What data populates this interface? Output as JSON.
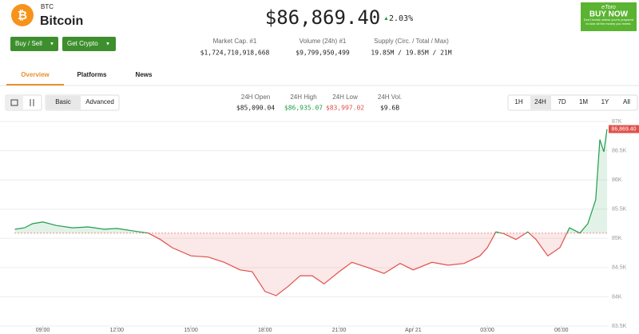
{
  "header": {
    "symbol": "BTC",
    "name": "Bitcoin",
    "price": "$86,869.40",
    "change": "2.03%"
  },
  "ad": {
    "brand": "eToro",
    "cta": "BUY NOW",
    "disclaimer": "Don't invest unless you're prepared to lose all the money you invest."
  },
  "buttons": [
    "Buy / Sell",
    "Get Crypto"
  ],
  "stats": [
    {
      "label": "Market Cap. #1",
      "value": "$1,724,710,918,668"
    },
    {
      "label": "Volume (24h) #1",
      "value": "$9,799,950,499"
    },
    {
      "label": "Supply (Circ. / Total / Max)",
      "value": "19.85M / 19.85M / 21M"
    }
  ],
  "tabs": [
    "Overview",
    "Platforms",
    "News"
  ],
  "chart_controls": {
    "modes": [
      "Basic",
      "Advanced"
    ],
    "ranges": [
      "1H",
      "24H",
      "7D",
      "1M",
      "1Y",
      "All"
    ]
  },
  "day_stats": [
    {
      "label": "24H Open",
      "value": "$85,090.04"
    },
    {
      "label": "24H High",
      "value": "$86,935.07"
    },
    {
      "label": "24H Low",
      "value": "$83,997.02"
    },
    {
      "label": "24H Vol.",
      "value": "$9.6B"
    }
  ],
  "chart_data": {
    "type": "line",
    "x": [
      7.87,
      8.26,
      8.58,
      9,
      9.55,
      10.2,
      10.84,
      11.49,
      12,
      12.62,
      13.27,
      13.76,
      14.24,
      15,
      15.7,
      16.35,
      16.99,
      17.48,
      18,
      18.45,
      18.94,
      19.42,
      19.91,
      20.39,
      21,
      21.52,
      22.17,
      22.82,
      23.47,
      24,
      24.76,
      25.41,
      26.06,
      26.7,
      27,
      27.35,
      27.67,
      28.16,
      28.64,
      28.97,
      29.45,
      29.94,
      30.33,
      30.75,
      31.07,
      31.39,
      31.56,
      31.72,
      31.85
    ],
    "values": [
      85155,
      85180,
      85250,
      85280,
      85220,
      85180,
      85195,
      85155,
      85170,
      85130,
      85090,
      84980,
      84840,
      84700,
      84680,
      84590,
      84460,
      84430,
      84090,
      84020,
      84180,
      84360,
      84360,
      84220,
      84430,
      84590,
      84500,
      84400,
      84570,
      84460,
      84590,
      84540,
      84570,
      84700,
      84840,
      85110,
      85080,
      84980,
      85110,
      84980,
      84700,
      84840,
      85180,
      85090,
      85250,
      85660,
      86690,
      86480,
      86869.4
    ],
    "baseline": 85090.04,
    "last_price_label": "86,869.40",
    "colors": {
      "above": "#1e9e4a",
      "below": "#e0504a"
    },
    "xlim": [
      7.85,
      31.85
    ],
    "xticks": [
      {
        "value": 9,
        "label": "09:00"
      },
      {
        "value": 12,
        "label": "12:00"
      },
      {
        "value": 15,
        "label": "15:00"
      },
      {
        "value": 18,
        "label": "18:00"
      },
      {
        "value": 21,
        "label": "21:00"
      },
      {
        "value": 24,
        "label": "Apr 21"
      },
      {
        "value": 27,
        "label": "03:00"
      },
      {
        "value": 30,
        "label": "06:00"
      }
    ],
    "ylim": [
      83500,
      87000
    ],
    "yticks": [
      {
        "value": 83500,
        "label": "83.5K"
      },
      {
        "value": 84000,
        "label": "84K"
      },
      {
        "value": 84500,
        "label": "84.5K"
      },
      {
        "value": 85000,
        "label": "85K"
      },
      {
        "value": 85500,
        "label": "85.5K"
      },
      {
        "value": 86000,
        "label": "86K"
      },
      {
        "value": 86500,
        "label": "86.5K"
      },
      {
        "value": 87000,
        "label": "87K"
      }
    ],
    "grid": true
  }
}
